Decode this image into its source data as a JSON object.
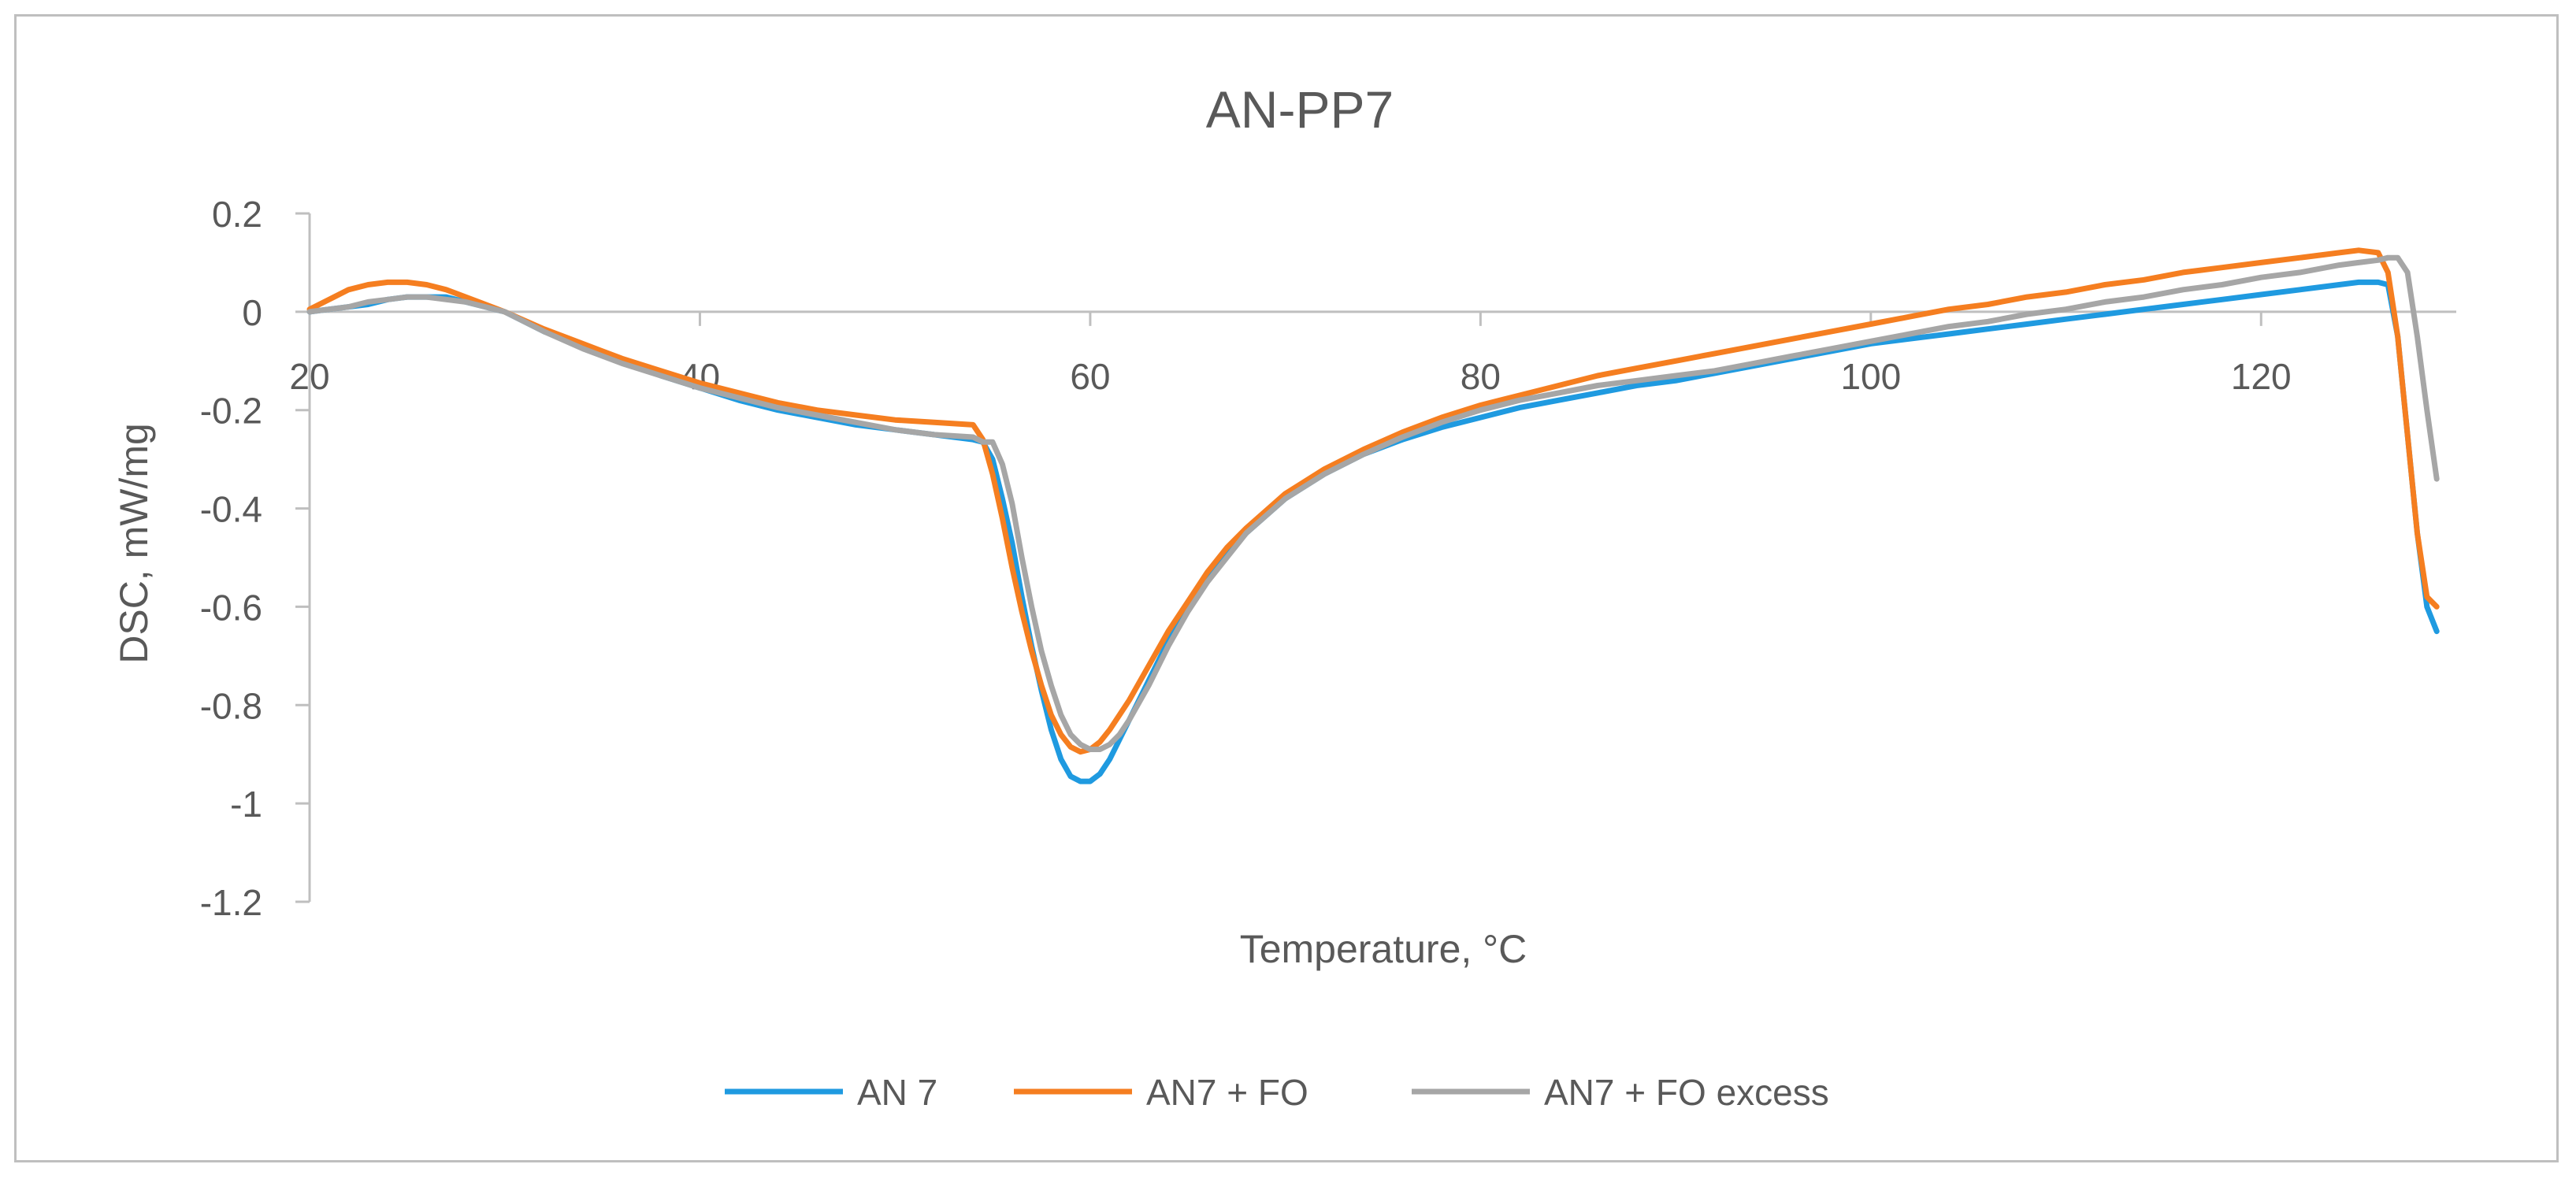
{
  "chart_data": {
    "type": "line",
    "title": "AN-PP7",
    "xlabel": "Temperature, °C",
    "ylabel": "DSC, mW/mg",
    "xlim": [
      20,
      130
    ],
    "ylim": [
      -1.2,
      0.2
    ],
    "xticks": [
      20,
      40,
      60,
      80,
      100,
      120
    ],
    "yticks": [
      0.2,
      0,
      -0.2,
      -0.4,
      -0.6,
      -0.8,
      -1,
      -1.2
    ],
    "xtick_labels": [
      "20",
      "40",
      "60",
      "80",
      "100",
      "120"
    ],
    "ytick_labels": [
      "0.2",
      "0",
      "-0.2",
      "-0.4",
      "-0.6",
      "-0.8",
      "-1",
      "-1.2"
    ],
    "grid": false,
    "legend_position": "bottom",
    "series": [
      {
        "name": "AN 7",
        "color": "#1f9ae0",
        "x": [
          20,
          21,
          22,
          23,
          24,
          25,
          26,
          27,
          28,
          29,
          30,
          32,
          34,
          36,
          38,
          40,
          42,
          44,
          46,
          48,
          50,
          52,
          54,
          54.5,
          55,
          55.5,
          56,
          56.5,
          57,
          57.5,
          58,
          58.5,
          59,
          59.5,
          60,
          60.5,
          61,
          61.5,
          62,
          63,
          64,
          65,
          66,
          67,
          68,
          70,
          72,
          74,
          76,
          78,
          80,
          82,
          84,
          86,
          88,
          90,
          92,
          94,
          96,
          98,
          100,
          102,
          104,
          106,
          108,
          110,
          112,
          114,
          116,
          118,
          120,
          122,
          124,
          125,
          126,
          126.5,
          127,
          127.5,
          128,
          128.5,
          129
        ],
        "y": [
          0,
          0.005,
          0.01,
          0.015,
          0.025,
          0.03,
          0.03,
          0.03,
          0.02,
          0.01,
          0,
          -0.04,
          -0.07,
          -0.1,
          -0.13,
          -0.155,
          -0.18,
          -0.2,
          -0.215,
          -0.23,
          -0.24,
          -0.25,
          -0.26,
          -0.265,
          -0.3,
          -0.38,
          -0.47,
          -0.58,
          -0.68,
          -0.77,
          -0.85,
          -0.91,
          -0.945,
          -0.955,
          -0.955,
          -0.94,
          -0.91,
          -0.87,
          -0.83,
          -0.75,
          -0.67,
          -0.6,
          -0.54,
          -0.49,
          -0.45,
          -0.38,
          -0.33,
          -0.29,
          -0.26,
          -0.235,
          -0.215,
          -0.195,
          -0.18,
          -0.165,
          -0.15,
          -0.14,
          -0.125,
          -0.11,
          -0.095,
          -0.08,
          -0.065,
          -0.055,
          -0.045,
          -0.035,
          -0.025,
          -0.015,
          -0.005,
          0.005,
          0.015,
          0.025,
          0.035,
          0.045,
          0.055,
          0.06,
          0.06,
          0.055,
          -0.05,
          -0.25,
          -0.45,
          -0.6,
          -0.65
        ]
      },
      {
        "name": "AN7 + FO",
        "color": "#f57e20",
        "x": [
          20,
          21,
          22,
          23,
          24,
          25,
          26,
          27,
          28,
          29,
          30,
          32,
          34,
          36,
          38,
          40,
          42,
          44,
          46,
          48,
          50,
          52,
          54,
          54.5,
          55,
          55.5,
          56,
          56.5,
          57,
          57.5,
          58,
          58.5,
          59,
          59.5,
          60,
          60.5,
          61,
          61.5,
          62,
          63,
          64,
          65,
          66,
          67,
          68,
          70,
          72,
          74,
          76,
          78,
          80,
          82,
          84,
          86,
          88,
          90,
          92,
          94,
          96,
          98,
          100,
          102,
          104,
          106,
          108,
          110,
          112,
          114,
          116,
          118,
          120,
          122,
          124,
          125,
          126,
          126.5,
          127,
          127.5,
          128,
          128.5,
          129
        ],
        "y": [
          0.005,
          0.025,
          0.045,
          0.055,
          0.06,
          0.06,
          0.055,
          0.045,
          0.03,
          0.015,
          0,
          -0.035,
          -0.065,
          -0.095,
          -0.12,
          -0.145,
          -0.165,
          -0.185,
          -0.2,
          -0.21,
          -0.22,
          -0.225,
          -0.23,
          -0.26,
          -0.33,
          -0.42,
          -0.52,
          -0.61,
          -0.69,
          -0.76,
          -0.82,
          -0.86,
          -0.885,
          -0.895,
          -0.89,
          -0.875,
          -0.85,
          -0.82,
          -0.79,
          -0.72,
          -0.65,
          -0.59,
          -0.53,
          -0.48,
          -0.44,
          -0.37,
          -0.32,
          -0.28,
          -0.245,
          -0.215,
          -0.19,
          -0.17,
          -0.15,
          -0.13,
          -0.115,
          -0.1,
          -0.085,
          -0.07,
          -0.055,
          -0.04,
          -0.025,
          -0.01,
          0.005,
          0.015,
          0.03,
          0.04,
          0.055,
          0.065,
          0.08,
          0.09,
          0.1,
          0.11,
          0.12,
          0.125,
          0.12,
          0.08,
          -0.05,
          -0.25,
          -0.45,
          -0.58,
          -0.6
        ]
      },
      {
        "name": "AN7 + FO excess",
        "color": "#a6a6a6",
        "x": [
          20,
          21,
          22,
          23,
          24,
          25,
          26,
          27,
          28,
          29,
          30,
          32,
          34,
          36,
          38,
          40,
          42,
          44,
          46,
          48,
          50,
          52,
          54,
          54.5,
          55,
          55.5,
          56,
          56.5,
          57,
          57.5,
          58,
          58.5,
          59,
          59.5,
          60,
          60.5,
          61,
          61.5,
          62,
          63,
          64,
          65,
          66,
          67,
          68,
          70,
          72,
          74,
          76,
          78,
          80,
          82,
          84,
          86,
          88,
          90,
          92,
          94,
          96,
          98,
          100,
          102,
          104,
          106,
          108,
          110,
          112,
          114,
          116,
          118,
          120,
          122,
          124,
          125,
          126,
          126.5,
          127,
          127.5,
          128,
          128.5,
          129
        ],
        "y": [
          0,
          0.005,
          0.01,
          0.02,
          0.025,
          0.03,
          0.03,
          0.025,
          0.02,
          0.01,
          0,
          -0.04,
          -0.075,
          -0.105,
          -0.13,
          -0.155,
          -0.175,
          -0.195,
          -0.21,
          -0.225,
          -0.24,
          -0.25,
          -0.255,
          -0.265,
          -0.265,
          -0.31,
          -0.39,
          -0.5,
          -0.6,
          -0.69,
          -0.76,
          -0.82,
          -0.86,
          -0.88,
          -0.89,
          -0.89,
          -0.88,
          -0.86,
          -0.83,
          -0.76,
          -0.68,
          -0.61,
          -0.55,
          -0.5,
          -0.45,
          -0.38,
          -0.33,
          -0.29,
          -0.255,
          -0.225,
          -0.2,
          -0.18,
          -0.165,
          -0.15,
          -0.14,
          -0.13,
          -0.12,
          -0.105,
          -0.09,
          -0.075,
          -0.06,
          -0.045,
          -0.03,
          -0.02,
          -0.005,
          0.005,
          0.02,
          0.03,
          0.045,
          0.055,
          0.07,
          0.08,
          0.095,
          0.1,
          0.105,
          0.11,
          0.11,
          0.08,
          -0.05,
          -0.2,
          -0.34
        ]
      }
    ]
  }
}
